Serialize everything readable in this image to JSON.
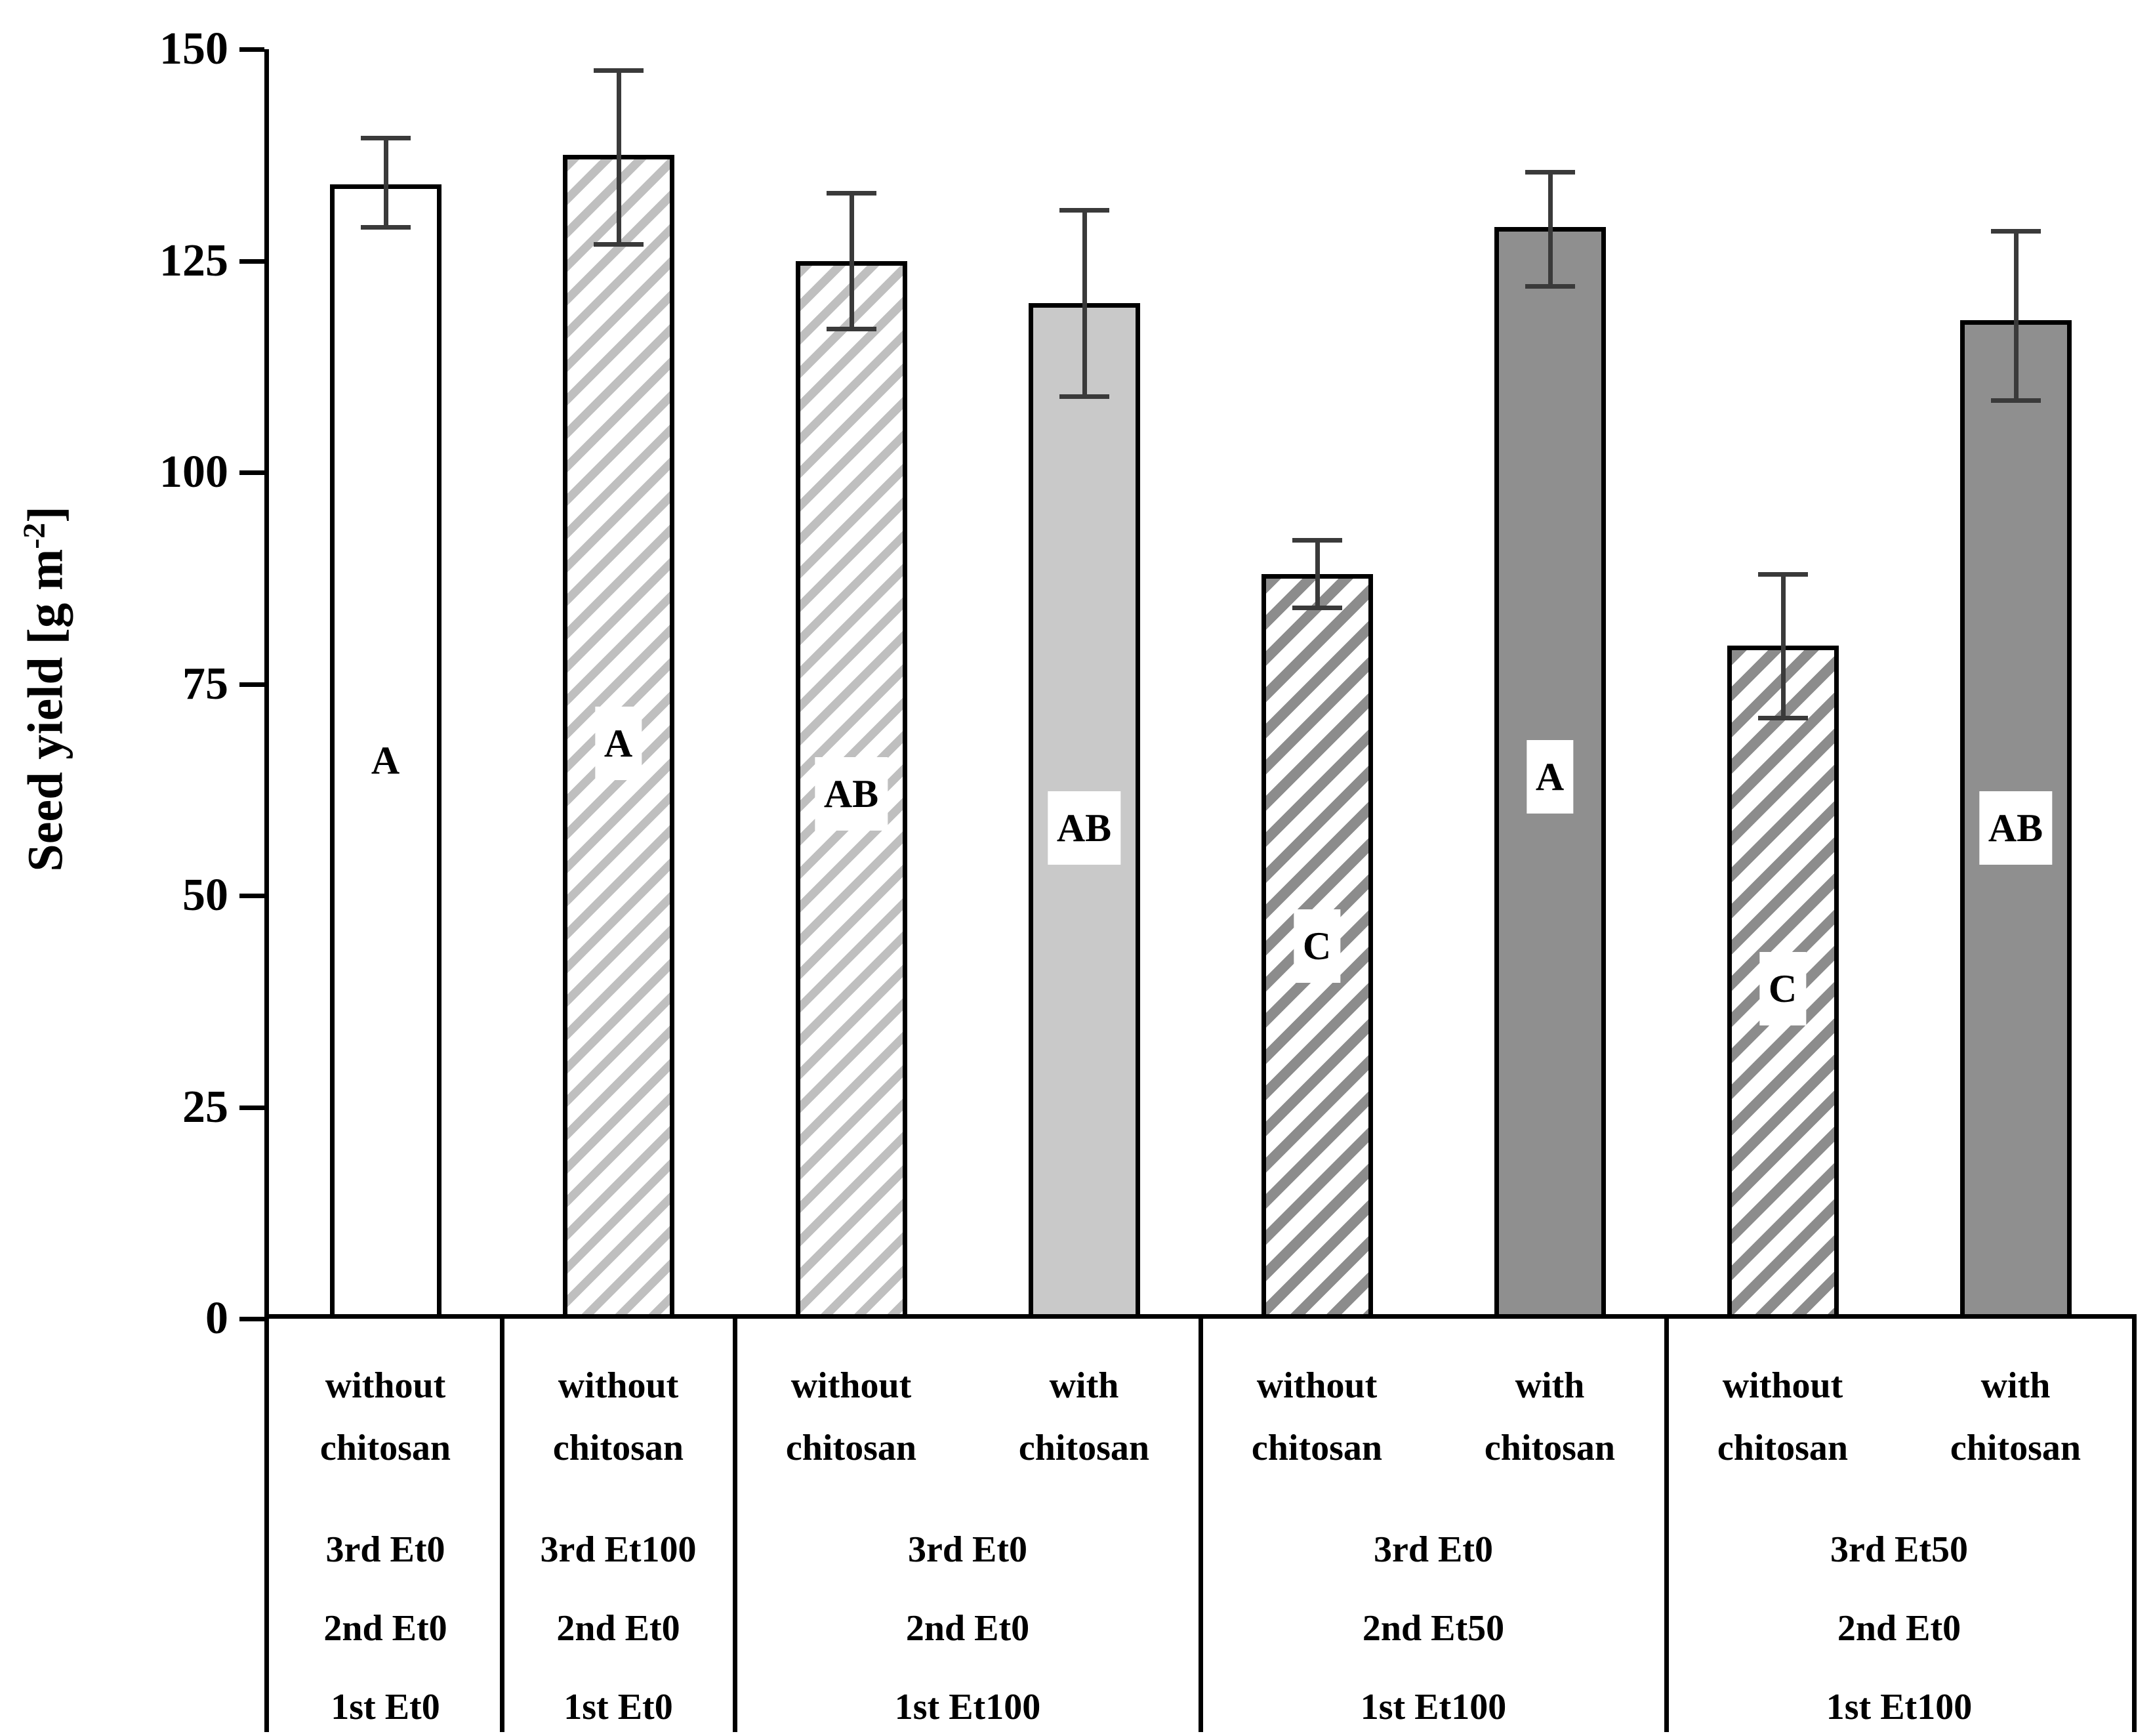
{
  "chart_data": {
    "type": "bar",
    "title": "",
    "ylabel_pre": "Seed yield [g m",
    "ylabel_sup": "-2",
    "ylabel_post": "]",
    "ylim": [
      0,
      150
    ],
    "yticks": [
      0,
      25,
      50,
      75,
      100,
      125,
      150
    ],
    "grid": "off",
    "legend": "none",
    "bars": [
      {
        "value": 134,
        "err_low": 129,
        "err_high": 139.5,
        "letter": "A",
        "letter_y": 66,
        "fill": "plain-white"
      },
      {
        "value": 137.5,
        "err_low": 127,
        "err_high": 147.5,
        "letter": "A",
        "letter_y": 68,
        "fill": "hatch-light"
      },
      {
        "value": 125,
        "err_low": 117,
        "err_high": 133,
        "letter": "AB",
        "letter_y": 62,
        "fill": "hatch-light"
      },
      {
        "value": 120,
        "err_low": 109,
        "err_high": 131,
        "letter": "AB",
        "letter_y": 58,
        "fill": "solid-light"
      },
      {
        "value": 88,
        "err_low": 84,
        "err_high": 92,
        "letter": "C",
        "letter_y": 44,
        "fill": "hatch-dark"
      },
      {
        "value": 129,
        "err_low": 122,
        "err_high": 135.5,
        "letter": "A",
        "letter_y": 64,
        "fill": "solid-dark"
      },
      {
        "value": 79.5,
        "err_low": 71,
        "err_high": 88,
        "letter": "C",
        "letter_y": 39,
        "fill": "hatch-dark"
      },
      {
        "value": 118,
        "err_low": 108.5,
        "err_high": 128.5,
        "letter": "AB",
        "letter_y": 58,
        "fill": "solid-dark"
      }
    ],
    "groups": [
      {
        "chitosan_labels": [
          "without chitosan"
        ],
        "treatments": [
          "3rd Et0",
          "2nd Et0",
          "1st Et0"
        ],
        "bar_count": 1
      },
      {
        "chitosan_labels": [
          "without chitosan"
        ],
        "treatments": [
          "3rd Et100",
          "2nd Et0",
          "1st Et0"
        ],
        "bar_count": 1
      },
      {
        "chitosan_labels": [
          "without chitosan",
          "with chitosan"
        ],
        "treatments": [
          "3rd Et0",
          "2nd Et0",
          "1st Et100"
        ],
        "bar_count": 2
      },
      {
        "chitosan_labels": [
          "without chitosan",
          "with chitosan"
        ],
        "treatments": [
          "3rd Et0",
          "2nd Et50",
          "1st Et100"
        ],
        "bar_count": 2
      },
      {
        "chitosan_labels": [
          "without chitosan",
          "with chitosan"
        ],
        "treatments": [
          "3rd Et50",
          "2nd Et0",
          "1st Et100"
        ],
        "bar_count": 2
      }
    ],
    "colors": {
      "bar_outline": "#000000",
      "stripe_light": "#bfbfbf",
      "stripe_dark": "#8c8c8c",
      "solid_light": "#c9c9c9",
      "solid_dark": "#8f8f8f",
      "error_bar": "#3a3a3a",
      "axis": "#000000",
      "background": "#ffffff"
    }
  }
}
